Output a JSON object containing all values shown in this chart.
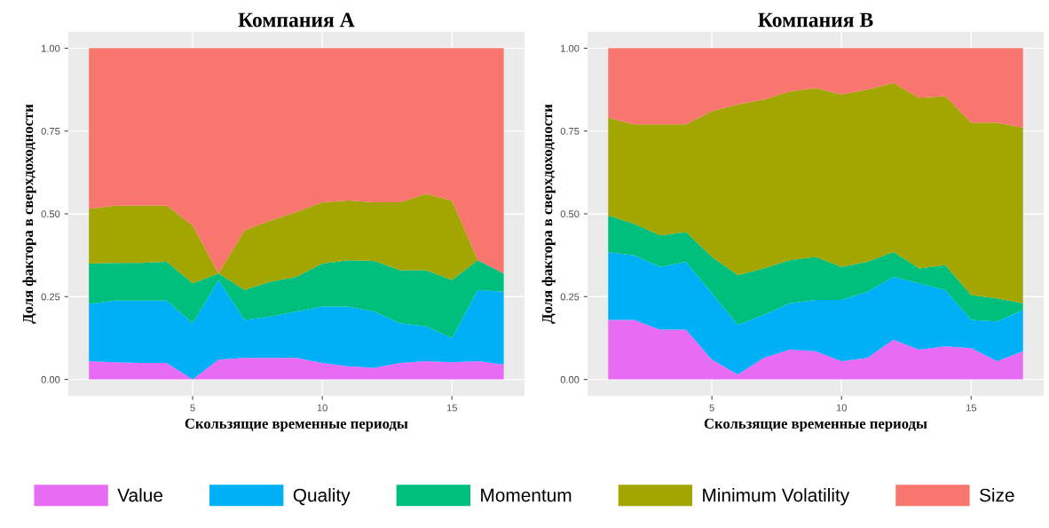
{
  "chart_data": [
    {
      "type": "area",
      "stacked": true,
      "title": "Компания А",
      "xlabel": "Скользящие временные периоды",
      "ylabel": "Доля фактора в сверхдоходности",
      "x": [
        1,
        2,
        3,
        4,
        5,
        6,
        7,
        8,
        9,
        10,
        11,
        12,
        13,
        14,
        15,
        16,
        17
      ],
      "xlim": [
        0.2,
        17.8
      ],
      "ylim": [
        -0.05,
        1.05
      ],
      "xticks": [
        5,
        10,
        15
      ],
      "yticks": [
        {
          "value": 0,
          "label": "0.00"
        },
        {
          "value": 0.25,
          "label": "0.25"
        },
        {
          "value": 0.5,
          "label": "0.50"
        },
        {
          "value": 0.75,
          "label": "0.75"
        },
        {
          "value": 1,
          "label": "1.00"
        }
      ],
      "grid": true,
      "legend": "bottom",
      "series": [
        {
          "name": "Value",
          "color": "#e76bf3",
          "values": [
            0.055,
            0.052,
            0.05,
            0.05,
            0.0,
            0.06,
            0.065,
            0.065,
            0.065,
            0.05,
            0.04,
            0.035,
            0.05,
            0.055,
            0.052,
            0.055,
            0.045
          ]
        },
        {
          "name": "Quality",
          "color": "#00b0f6",
          "values": [
            0.173,
            0.186,
            0.188,
            0.188,
            0.17,
            0.24,
            0.115,
            0.125,
            0.14,
            0.17,
            0.18,
            0.17,
            0.12,
            0.105,
            0.073,
            0.215,
            0.22
          ]
        },
        {
          "name": "Momentum",
          "color": "#00bf7d",
          "values": [
            0.122,
            0.114,
            0.114,
            0.117,
            0.12,
            0.02,
            0.09,
            0.105,
            0.105,
            0.13,
            0.14,
            0.153,
            0.16,
            0.17,
            0.175,
            0.09,
            0.055
          ]
        },
        {
          "name": "Minimum Volatility",
          "color": "#a3a500",
          "values": [
            0.165,
            0.173,
            0.173,
            0.17,
            0.175,
            0.0,
            0.18,
            0.185,
            0.195,
            0.185,
            0.18,
            0.177,
            0.205,
            0.23,
            0.24,
            0.0,
            0.0
          ]
        },
        {
          "name": "Size",
          "color": "#f8766d",
          "values": [
            0.485,
            0.475,
            0.475,
            0.475,
            0.535,
            0.68,
            0.55,
            0.52,
            0.495,
            0.465,
            0.46,
            0.465,
            0.465,
            0.44,
            0.46,
            0.64,
            0.68
          ]
        }
      ]
    },
    {
      "type": "area",
      "stacked": true,
      "title": "Компания В",
      "xlabel": "Скользящие временные периоды",
      "ylabel": "Доля фактора в сверхдоходности",
      "x": [
        1,
        2,
        3,
        4,
        5,
        6,
        7,
        8,
        9,
        10,
        11,
        12,
        13,
        14,
        15,
        16,
        17
      ],
      "xlim": [
        0.2,
        17.8
      ],
      "ylim": [
        -0.05,
        1.05
      ],
      "xticks": [
        5,
        10,
        15
      ],
      "yticks": [
        {
          "value": 0,
          "label": "0.00"
        },
        {
          "value": 0.25,
          "label": "0.25"
        },
        {
          "value": 0.5,
          "label": "0.50"
        },
        {
          "value": 0.75,
          "label": "0.75"
        },
        {
          "value": 1,
          "label": "1.00"
        }
      ],
      "grid": true,
      "series": [
        {
          "color": "#e76bf3",
          "values": [
            0.18,
            0.18,
            0.15,
            0.15,
            0.06,
            0.015,
            0.065,
            0.09,
            0.085,
            0.055,
            0.065,
            0.12,
            0.09,
            0.1,
            0.095,
            0.055,
            0.085
          ]
        },
        {
          "color": "#00b0f6",
          "values": [
            0.205,
            0.195,
            0.19,
            0.205,
            0.2,
            0.15,
            0.13,
            0.14,
            0.155,
            0.185,
            0.2,
            0.19,
            0.2,
            0.17,
            0.085,
            0.12,
            0.125
          ]
        },
        {
          "color": "#00bf7d",
          "values": [
            0.11,
            0.095,
            0.095,
            0.09,
            0.11,
            0.15,
            0.14,
            0.13,
            0.13,
            0.1,
            0.09,
            0.075,
            0.045,
            0.075,
            0.075,
            0.07,
            0.02
          ]
        },
        {
          "color": "#a3a500",
          "values": [
            0.295,
            0.3,
            0.335,
            0.325,
            0.44,
            0.515,
            0.51,
            0.51,
            0.51,
            0.52,
            0.52,
            0.51,
            0.515,
            0.51,
            0.52,
            0.53,
            0.53
          ]
        },
        {
          "color": "#f8766d",
          "values": [
            0.21,
            0.23,
            0.23,
            0.23,
            0.19,
            0.17,
            0.155,
            0.13,
            0.12,
            0.14,
            0.125,
            0.105,
            0.15,
            0.145,
            0.225,
            0.225,
            0.24
          ]
        }
      ]
    }
  ]
}
